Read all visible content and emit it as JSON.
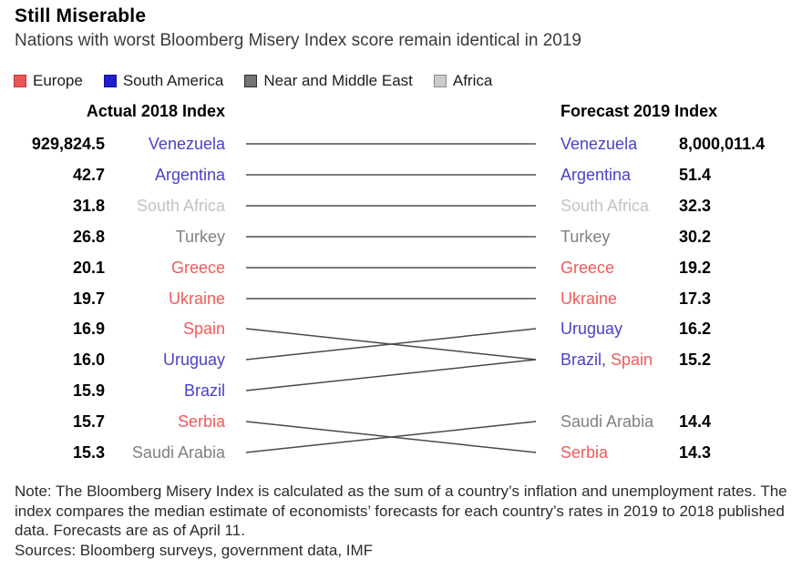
{
  "header": {
    "title": "Still Miserable",
    "subtitle": "Nations with worst Bloomberg Misery Index score remain identical in 2019"
  },
  "legend": {
    "items": [
      {
        "label": "Europe",
        "fill": "#ea5757",
        "border": "#b9383d"
      },
      {
        "label": "South America",
        "fill": "#2220cd",
        "border": "#12109b"
      },
      {
        "label": "Near and Middle East",
        "fill": "#747477",
        "border": "#2e2e30"
      },
      {
        "label": "Africa",
        "fill": "#cbcbcd",
        "border": "#88888a"
      }
    ]
  },
  "chart_data": {
    "type": "slope",
    "title": "Still Miserable",
    "left_header": "Actual 2018 Index",
    "right_header": "Forecast 2019 Index",
    "region_colors": {
      "Europe": "#ef5a5a",
      "South America": "#4b42c5",
      "Near and Middle East": "#808080",
      "Africa": "#c3c3c3"
    },
    "left_rows": [
      {
        "value": "929,824.5",
        "label": "Venezuela",
        "region": "South America"
      },
      {
        "value": "42.7",
        "label": "Argentina",
        "region": "South America"
      },
      {
        "value": "31.8",
        "label": "South Africa",
        "region": "Africa"
      },
      {
        "value": "26.8",
        "label": "Turkey",
        "region": "Near and Middle East"
      },
      {
        "value": "20.1",
        "label": "Greece",
        "region": "Europe"
      },
      {
        "value": "19.7",
        "label": "Ukraine",
        "region": "Europe"
      },
      {
        "value": "16.9",
        "label": "Spain",
        "region": "Europe"
      },
      {
        "value": "16.0",
        "label": "Uruguay",
        "region": "South America"
      },
      {
        "value": "15.9",
        "label": "Brazil",
        "region": "South America"
      },
      {
        "value": "15.7",
        "label": "Serbia",
        "region": "Europe"
      },
      {
        "value": "15.3",
        "label": "Saudi Arabia",
        "region": "Near and Middle East"
      }
    ],
    "right_rows": [
      {
        "row": 0,
        "value": "8,000,011.4",
        "parts": [
          {
            "text": "Venezuela",
            "region": "South America"
          }
        ]
      },
      {
        "row": 1,
        "value": "51.4",
        "parts": [
          {
            "text": "Argentina",
            "region": "South America"
          }
        ]
      },
      {
        "row": 2,
        "value": "32.3",
        "parts": [
          {
            "text": "South Africa",
            "region": "Africa"
          }
        ]
      },
      {
        "row": 3,
        "value": "30.2",
        "parts": [
          {
            "text": "Turkey",
            "region": "Near and Middle East"
          }
        ]
      },
      {
        "row": 4,
        "value": "19.2",
        "parts": [
          {
            "text": "Greece",
            "region": "Europe"
          }
        ]
      },
      {
        "row": 5,
        "value": "17.3",
        "parts": [
          {
            "text": "Ukraine",
            "region": "Europe"
          }
        ]
      },
      {
        "row": 6,
        "value": "16.2",
        "parts": [
          {
            "text": "Uruguay",
            "region": "South America"
          }
        ]
      },
      {
        "row": 7,
        "value": "15.2",
        "parts": [
          {
            "text": "Brazil,",
            "region": "South America"
          },
          {
            "text": " Spain",
            "region": "Europe"
          }
        ]
      },
      {
        "row": 9,
        "value": "14.4",
        "parts": [
          {
            "text": "Saudi Arabia",
            "region": "Near and Middle East"
          }
        ]
      },
      {
        "row": 10,
        "value": "14.3",
        "parts": [
          {
            "text": "Serbia",
            "region": "Europe"
          }
        ]
      }
    ],
    "connections": [
      [
        0,
        0
      ],
      [
        1,
        1
      ],
      [
        2,
        2
      ],
      [
        3,
        3
      ],
      [
        4,
        4
      ],
      [
        5,
        5
      ],
      [
        6,
        7
      ],
      [
        7,
        6
      ],
      [
        8,
        7
      ],
      [
        9,
        10
      ],
      [
        10,
        9
      ]
    ],
    "line_colors": {
      "straight": "#7a7a7a",
      "slanted": "#4a4a4a"
    }
  },
  "footer": {
    "note": "Note: The Bloomberg Misery Index is calculated as the sum of a country’s inflation and unemployment rates. The index compares the median estimate of economists’ forecasts for each country’s rates in 2019 to 2018 published data. Forecasts are as of April 11.",
    "sources": "Sources: Bloomberg surveys, government data, IMF"
  }
}
